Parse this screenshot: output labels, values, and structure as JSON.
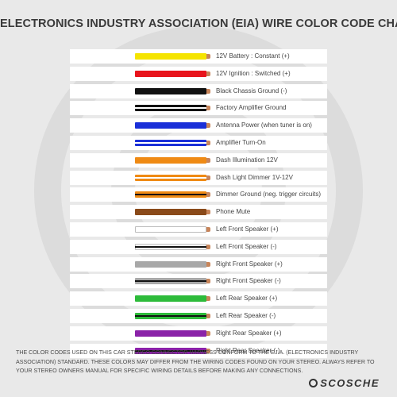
{
  "title": "ELECTRONICS INDUSTRY ASSOCIATION (EIA) WIRE COLOR CODE CHART",
  "rows": [
    {
      "color": "Yellow",
      "function": "12V Battery : Constant (+)",
      "wire": "#f5e400",
      "stripe": ""
    },
    {
      "color": "Red",
      "function": "12V Ignition : Switched (+)",
      "wire": "#e8141c",
      "stripe": ""
    },
    {
      "color": "Black",
      "function": "Black Chassis Ground (-)",
      "wire": "#111111",
      "stripe": ""
    },
    {
      "color": "Black/White",
      "function": "Factory Amplifier Ground",
      "wire": "#111111",
      "stripe": "#ffffff"
    },
    {
      "color": "Blue",
      "function": "Antenna Power (when tuner is on)",
      "wire": "#1a2fd8",
      "stripe": ""
    },
    {
      "color": "Blue/White",
      "function": "Amplifier Turn-On",
      "wire": "#1a2fd8",
      "stripe": "#ffffff"
    },
    {
      "color": "Orange",
      "function": "Dash Illumination 12V",
      "wire": "#ef8a14",
      "stripe": ""
    },
    {
      "color": "Orange/White",
      "function": "Dash Light Dimmer 1V-12V",
      "wire": "#ef8a14",
      "stripe": "#ffffff"
    },
    {
      "color": "Orange/Black",
      "function": "Dimmer Ground (neg. trigger circuits)",
      "wire": "#ef8a14",
      "stripe": "#111111"
    },
    {
      "color": "Brown",
      "function": "Phone Mute",
      "wire": "#8a4a1a",
      "stripe": ""
    },
    {
      "color": "White",
      "function": "Left Front Speaker (+)",
      "wire": "#ffffff",
      "stripe": ""
    },
    {
      "color": "White/Black",
      "function": "Left Front Speaker (-)",
      "wire": "#ffffff",
      "stripe": "#111111"
    },
    {
      "color": "Gray",
      "function": "Right Front Speaker (+)",
      "wire": "#a8a8a8",
      "stripe": ""
    },
    {
      "color": "Gray/Black",
      "function": "Right Front Speaker (-)",
      "wire": "#a8a8a8",
      "stripe": "#111111"
    },
    {
      "color": "Green",
      "function": "Left Rear Speaker (+)",
      "wire": "#2dbb3a",
      "stripe": ""
    },
    {
      "color": "Green/Black",
      "function": "Left Rear Speaker (-)",
      "wire": "#2dbb3a",
      "stripe": "#111111"
    },
    {
      "color": "Purple",
      "function": "Right Rear Speaker (+)",
      "wire": "#8a22a8",
      "stripe": ""
    },
    {
      "color": "Purple/Black",
      "function": "Right Rear Speaker (-)",
      "wire": "#8a22a8",
      "stripe": "#111111"
    }
  ],
  "footer": "THE COLOR CODES USED ON THIS CAR STEREO CONNECTOR HARNESS CONFORM TO THE E.I.A. (ELECTRONICS INDUSTRY ASSOCIATION) STANDARD. THESE COLORS MAY DIFFER FROM THE WIRING CODES FOUND ON YOUR STEREO. ALWAYS REFER TO YOUR STEREO OWNERS MANUAL FOR SPECIFIC WIRING DETAILS BEFORE MAKING ANY CONNECTIONS.",
  "brand": "SCOSCHE",
  "colors": {
    "background": "#e9e9e9",
    "row_background": "#ffffff",
    "tip": "#c8855a",
    "text": "#444444"
  }
}
